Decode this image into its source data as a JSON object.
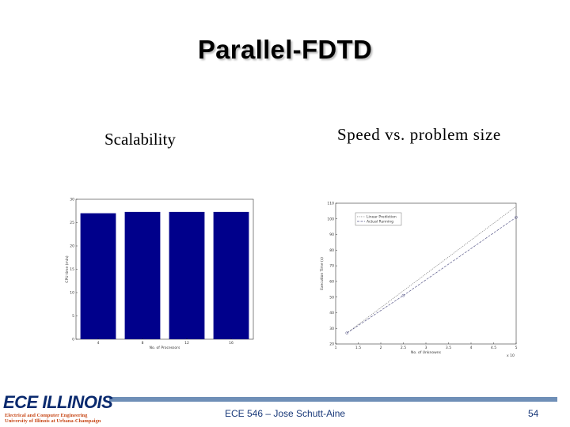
{
  "slide": {
    "title": "Parallel-FDTD",
    "left_heading": "Scalability",
    "right_heading": "Speed vs. problem size"
  },
  "footer": {
    "logo_text": "ECE ILLINOIS",
    "logo_line1": "Electrical and Computer Engineering",
    "logo_line2": "University of Illinois at Urbana-Champaign",
    "center_text": "ECE 546 – Jose Schutt-Aine",
    "page_number": "54"
  },
  "colors": {
    "bar": "#00008b",
    "footer_bar": "#6f8fb7",
    "footer_text": "#1a3a7a"
  },
  "chart_data": [
    {
      "type": "bar",
      "categories": [
        "4",
        "8",
        "12",
        "16"
      ],
      "values": [
        27,
        27.3,
        27.3,
        27.3
      ],
      "xlabel": "No. of Processors",
      "ylabel": "CPU time (min)",
      "ylim": [
        0,
        30
      ],
      "yticks": [
        "0",
        "5",
        "10",
        "15",
        "20",
        "25",
        "30"
      ],
      "grid": false
    },
    {
      "type": "line",
      "x": [
        1.25,
        2.5,
        5
      ],
      "series": [
        {
          "name": "Linear Prediction",
          "values": [
            27,
            54,
            108
          ]
        },
        {
          "name": "Actual Running",
          "values": [
            27,
            51,
            101
          ]
        }
      ],
      "xlabel": "No. of Unknowns",
      "ylabel": "Execution Time (s)",
      "xlim": [
        1,
        5
      ],
      "ylim": [
        20,
        110
      ],
      "xticks": [
        "1",
        "1.5",
        "2",
        "2.5",
        "3",
        "3.5",
        "4",
        "4.5",
        "5"
      ],
      "yticks": [
        "20",
        "30",
        "40",
        "50",
        "60",
        "70",
        "80",
        "90",
        "100",
        "110"
      ],
      "x_exponent": "x 10",
      "legend": "top-left",
      "grid": false
    }
  ]
}
